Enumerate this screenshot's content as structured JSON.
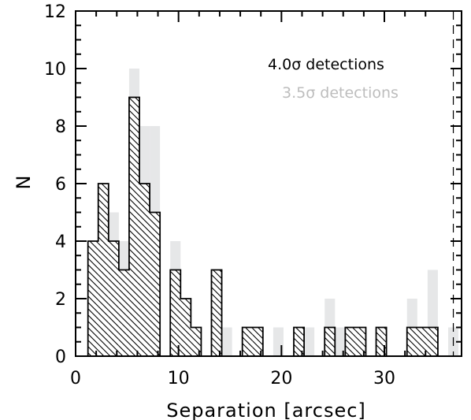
{
  "chart_data": {
    "type": "bar",
    "xlabel": "Separation [arcsec]",
    "ylabel": "N",
    "xlim": [
      0,
      37.5
    ],
    "ylim": [
      0,
      12
    ],
    "x_ticks": [
      0,
      10,
      20,
      30
    ],
    "y_ticks": [
      0,
      2,
      4,
      6,
      8,
      10,
      12
    ],
    "bin_width": 1.0,
    "grid": false,
    "legend_position": "top-right",
    "dashed_vline_x": 36.7,
    "series": [
      {
        "name": "3.5σ detections",
        "color": "#e6e7e8",
        "fill": "solid",
        "bins_left": [
          1.2,
          2.2,
          3.2,
          4.2,
          5.2,
          6.2,
          7.2,
          8.2,
          9.2,
          10.2,
          11.2,
          12.2,
          13.2,
          14.2,
          15.2,
          16.2,
          17.2,
          18.2,
          19.2,
          20.2,
          21.2,
          22.2,
          23.2,
          24.2,
          25.2,
          26.2,
          27.2,
          28.2,
          29.2,
          30.2,
          31.2,
          32.2,
          33.2,
          34.2,
          35.2,
          36.2
        ],
        "values": [
          4,
          6,
          5,
          4,
          10,
          8,
          8,
          0,
          4,
          2,
          1,
          0,
          3,
          1,
          0,
          1,
          1,
          0,
          1,
          0,
          1,
          1,
          0,
          2,
          1,
          1,
          1,
          0,
          1,
          0,
          0,
          2,
          1,
          3,
          0,
          1
        ]
      },
      {
        "name": "4.0σ detections",
        "color": "#000000",
        "fill": "hatched",
        "bins_left": [
          1.2,
          2.2,
          3.2,
          4.2,
          5.2,
          6.2,
          7.2,
          8.2,
          9.2,
          10.2,
          11.2,
          12.2,
          13.2,
          14.2,
          15.2,
          16.2,
          17.2,
          18.2,
          19.2,
          20.2,
          21.2,
          22.2,
          23.2,
          24.2,
          25.2,
          26.2,
          27.2,
          28.2,
          29.2,
          30.2,
          31.2,
          32.2,
          33.2,
          34.2,
          35.2,
          36.2
        ],
        "values": [
          4,
          6,
          4,
          3,
          9,
          6,
          5,
          0,
          3,
          2,
          1,
          0,
          3,
          0,
          0,
          1,
          1,
          0,
          0,
          0,
          1,
          0,
          0,
          1,
          0,
          1,
          1,
          0,
          1,
          0,
          0,
          1,
          1,
          1,
          0,
          0
        ]
      }
    ]
  }
}
